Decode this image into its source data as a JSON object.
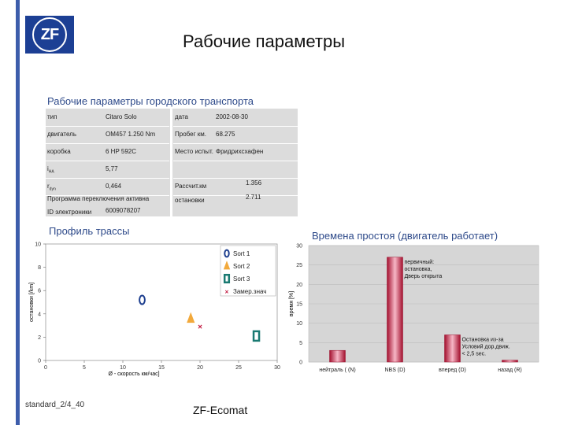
{
  "header": {
    "logo_text": "ZF",
    "title": "Рабочие параметры"
  },
  "params": {
    "title": "Рабочие параметры городского транспорта",
    "left": [
      {
        "key": "тип",
        "value": "Citaro Solo"
      },
      {
        "key": "двигатель",
        "value": "OM457 1.250 Nm"
      },
      {
        "key": "коробка",
        "value": "6 HP 592C"
      },
      {
        "key": "i",
        "key_sub": "HA",
        "value": "5,77"
      },
      {
        "key": "r",
        "key_sub": "dyn",
        "value": "0,464"
      },
      {
        "key": "Программа переключения активна",
        "value": ""
      },
      {
        "key": "ID электроники",
        "value": "6009078207"
      }
    ],
    "right": [
      {
        "key": "дата",
        "value": "2002-08-30"
      },
      {
        "key": "Пробег км.",
        "value": "68.275"
      },
      {
        "key": "Место испыт.",
        "value": "Фридрихсхафен"
      },
      {
        "key": "",
        "value": ""
      },
      {
        "key": "Рассчит.км",
        "value": "1.356"
      },
      {
        "key": "остановки",
        "value": "2.711"
      }
    ]
  },
  "chart_data": [
    {
      "type": "scatter",
      "title": "Профиль трассы",
      "xlabel": "Ø - скорость км/час]",
      "ylabel": "остановки [/km]",
      "xlim": [
        0,
        30
      ],
      "ylim": [
        0,
        10
      ],
      "xticks": [
        "0",
        "5",
        "10",
        "15",
        "20",
        "25",
        "30"
      ],
      "yticks": [
        "0",
        "2",
        "4",
        "6",
        "8",
        "10"
      ],
      "grid": false,
      "legend_position": "top-right",
      "series": [
        {
          "name": "Sort 1",
          "marker": "ellipse",
          "color": "#1e3f8f",
          "points": [
            [
              12.5,
              5.2
            ]
          ]
        },
        {
          "name": "Sort 2",
          "marker": "triangle",
          "color": "#f2a93b",
          "points": [
            [
              18.8,
              3.6
            ]
          ]
        },
        {
          "name": "Sort 3",
          "marker": "rect",
          "color": "#1a7a72",
          "points": [
            [
              27.3,
              2.1
            ]
          ]
        },
        {
          "name": "Замер.знач",
          "marker": "x",
          "color": "#c0143c",
          "points": [
            [
              20.0,
              2.9
            ]
          ]
        }
      ]
    },
    {
      "type": "bar",
      "title": "Времена простоя (двигатель работает)",
      "ylabel": "время [%]",
      "ylim": [
        0,
        30
      ],
      "yticks": [
        "0",
        "5",
        "10",
        "15",
        "20",
        "25",
        "30"
      ],
      "categories": [
        "нейтраль ( (N)",
        "NBS (D)",
        "вперед (D)",
        "назад (R)"
      ],
      "values": [
        3,
        27,
        7,
        0.5
      ],
      "bar_color": "#d8365a",
      "annotations": [
        {
          "text": [
            "первичный:",
            "остановка,",
            "Дверь открыта"
          ],
          "category": "NBS (D)"
        },
        {
          "text": [
            "Остановка из-за",
            "Условий дор.движ.",
            "< 2,5 sec."
          ],
          "category": "вперед (D)"
        }
      ]
    }
  ],
  "footer": {
    "left": "standard_2/4_40",
    "center": "ZF-Ecomat"
  },
  "colors": {
    "accent": "#3d5dab",
    "logo_bg": "#1c3f94",
    "section_title": "#2e4a8a",
    "table_bg": "#dcdcdc"
  }
}
